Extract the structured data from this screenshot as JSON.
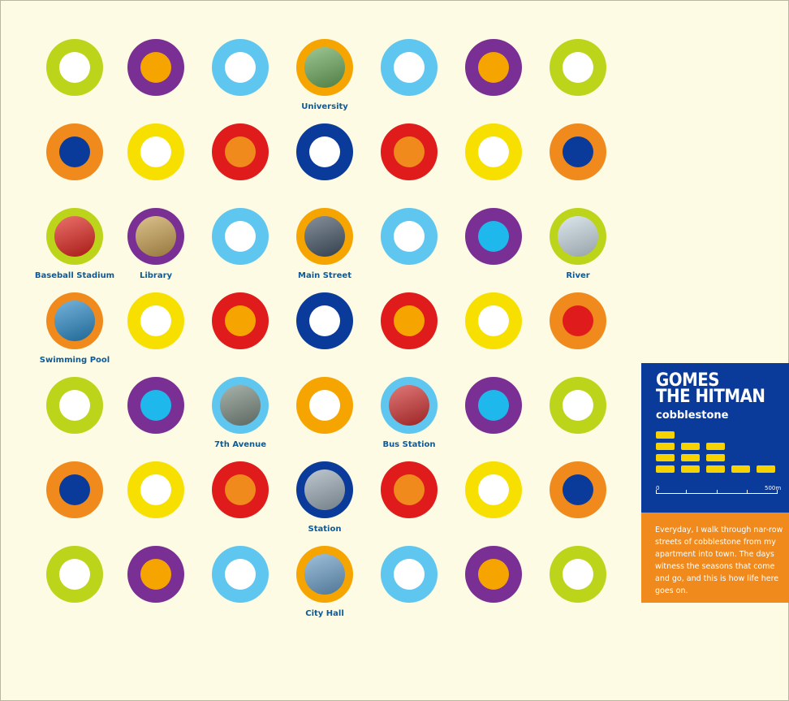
{
  "grid": {
    "cols": [
      92,
      192,
      296,
      400,
      504,
      608,
      712
    ],
    "rows": [
      83,
      187,
      291,
      395,
      499,
      603,
      707
    ],
    "dots": [
      {
        "outer": "#bcd41a",
        "inner": "#ffffff"
      },
      {
        "outer": "#7a2f94",
        "inner": "#f6a500"
      },
      {
        "outer": "#5fc6ef",
        "inner": "#ffffff"
      },
      {
        "outer": "#f6a500",
        "inner": "#6aa85a",
        "photo": "university-photo"
      },
      {
        "outer": "#5fc6ef",
        "inner": "#ffffff"
      },
      {
        "outer": "#7a2f94",
        "inner": "#f6a500"
      },
      {
        "outer": "#bcd41a",
        "inner": "#ffffff"
      },
      {
        "outer": "#f08a1c",
        "inner": "#0a3a9a"
      },
      {
        "outer": "#f7e000",
        "inner": "#ffffff"
      },
      {
        "outer": "#e01b1b",
        "inner": "#f08a1c"
      },
      {
        "outer": "#0a3a9a",
        "inner": "#ffffff"
      },
      {
        "outer": "#e01b1b",
        "inner": "#f08a1c"
      },
      {
        "outer": "#f7e000",
        "inner": "#ffffff"
      },
      {
        "outer": "#f08a1c",
        "inner": "#0a3a9a"
      },
      {
        "outer": "#bcd41a",
        "inner": "#e0241d",
        "photo": "baseball-logo"
      },
      {
        "outer": "#7a2f94",
        "inner": "#c8a050",
        "photo": "library-photo"
      },
      {
        "outer": "#5fc6ef",
        "inner": "#ffffff"
      },
      {
        "outer": "#f6a500",
        "inner": "#445566",
        "photo": "main-street-photo"
      },
      {
        "outer": "#5fc6ef",
        "inner": "#ffffff"
      },
      {
        "outer": "#7a2f94",
        "inner": "#1fb8ec"
      },
      {
        "outer": "#bcd41a",
        "inner": "#c9d8e2",
        "photo": "river-photo"
      },
      {
        "outer": "#f08a1c",
        "inner": "#2a8ac8",
        "photo": "pool-photo"
      },
      {
        "outer": "#f7e000",
        "inner": "#ffffff"
      },
      {
        "outer": "#e01b1b",
        "inner": "#f6a500"
      },
      {
        "outer": "#0a3a9a",
        "inner": "#ffffff"
      },
      {
        "outer": "#e01b1b",
        "inner": "#f6a500"
      },
      {
        "outer": "#f7e000",
        "inner": "#ffffff"
      },
      {
        "outer": "#f08a1c",
        "inner": "#e01b1b"
      },
      {
        "outer": "#bcd41a",
        "inner": "#ffffff"
      },
      {
        "outer": "#7a2f94",
        "inner": "#1fb8ec"
      },
      {
        "outer": "#5fc6ef",
        "inner": "#7a8a80",
        "photo": "avenue-photo"
      },
      {
        "outer": "#f6a500",
        "inner": "#ffffff"
      },
      {
        "outer": "#5fc6ef",
        "inner": "#d03030",
        "photo": "bus-photo"
      },
      {
        "outer": "#7a2f94",
        "inner": "#1fb8ec"
      },
      {
        "outer": "#bcd41a",
        "inner": "#ffffff"
      },
      {
        "outer": "#f08a1c",
        "inner": "#0a3a9a"
      },
      {
        "outer": "#f7e000",
        "inner": "#ffffff"
      },
      {
        "outer": "#e01b1b",
        "inner": "#f08a1c"
      },
      {
        "outer": "#0a3a9a",
        "inner": "#9aaab5",
        "photo": "station-photo"
      },
      {
        "outer": "#e01b1b",
        "inner": "#f08a1c"
      },
      {
        "outer": "#f7e000",
        "inner": "#ffffff"
      },
      {
        "outer": "#f08a1c",
        "inner": "#0a3a9a"
      },
      {
        "outer": "#bcd41a",
        "inner": "#ffffff"
      },
      {
        "outer": "#7a2f94",
        "inner": "#f6a500"
      },
      {
        "outer": "#5fc6ef",
        "inner": "#ffffff"
      },
      {
        "outer": "#f6a500",
        "inner": "#6a9ec8",
        "photo": "city-hall-photo"
      },
      {
        "outer": "#5fc6ef",
        "inner": "#ffffff"
      },
      {
        "outer": "#7a2f94",
        "inner": "#f6a500"
      },
      {
        "outer": "#bcd41a",
        "inner": "#ffffff"
      }
    ]
  },
  "labels": [
    {
      "text": "University",
      "col": 3,
      "row": 0
    },
    {
      "text": "Baseball Stadium",
      "col": 0,
      "row": 2
    },
    {
      "text": "Library",
      "col": 1,
      "row": 2
    },
    {
      "text": "Main Street",
      "col": 3,
      "row": 2
    },
    {
      "text": "River",
      "col": 6,
      "row": 2
    },
    {
      "text": "Swimming Pool",
      "col": 0,
      "row": 3
    },
    {
      "text": "7th Avenue",
      "col": 2,
      "row": 4
    },
    {
      "text": "Bus Station",
      "col": 4,
      "row": 4
    },
    {
      "text": "Station",
      "col": 3,
      "row": 5
    },
    {
      "text": "City Hall",
      "col": 3,
      "row": 6
    }
  ],
  "panel": {
    "title_line1": "GOMES",
    "title_line2": "THE HITMAN",
    "subtitle": "cobblestone",
    "scale_start": "0",
    "scale_end": "500m",
    "bus_counts": [
      1,
      3,
      3,
      5
    ],
    "description": "Everyday, I walk through nar-row streets of cobblestone from my apartment into town. The days witness the seasons that come and go, and this is how life here goes on."
  }
}
